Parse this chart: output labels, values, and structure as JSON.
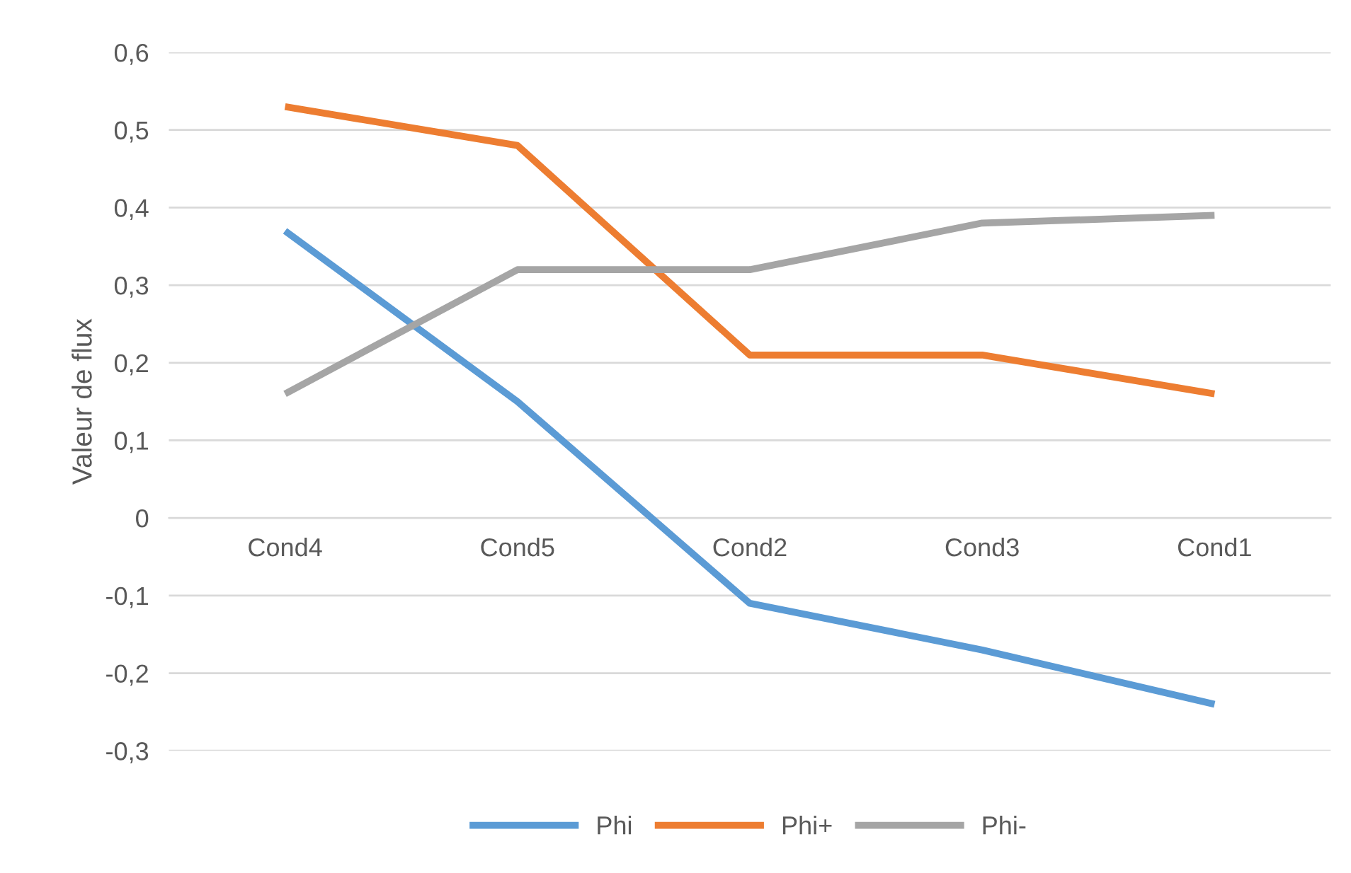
{
  "chart_data": {
    "type": "line",
    "ylabel": "Valeur de flux",
    "categories": [
      "Cond4",
      "Cond5",
      "Cond2",
      "Cond3",
      "Cond1"
    ],
    "series": [
      {
        "name": "Phi",
        "color": "#5b9bd5",
        "values": [
          0.37,
          0.15,
          -0.11,
          -0.17,
          -0.24
        ]
      },
      {
        "name": "Phi+",
        "color": "#ed7d31",
        "values": [
          0.53,
          0.48,
          0.21,
          0.21,
          0.16
        ]
      },
      {
        "name": "Phi-",
        "color": "#a5a5a5",
        "values": [
          0.16,
          0.32,
          0.32,
          0.38,
          0.39
        ]
      }
    ],
    "ylim": [
      -0.3,
      0.6
    ],
    "yticks": [
      {
        "value": -0.3,
        "label": "-0,3"
      },
      {
        "value": -0.2,
        "label": "-0,2"
      },
      {
        "value": -0.1,
        "label": "-0,1"
      },
      {
        "value": 0,
        "label": "0"
      },
      {
        "value": 0.1,
        "label": "0,1"
      },
      {
        "value": 0.2,
        "label": "0,2"
      },
      {
        "value": 0.3,
        "label": "0,3"
      },
      {
        "value": 0.4,
        "label": "0,4"
      },
      {
        "value": 0.5,
        "label": "0,5"
      },
      {
        "value": 0.6,
        "label": "0,6"
      }
    ],
    "grid": "y",
    "legend": "bottom",
    "marker": "none",
    "line_style": "solid"
  }
}
